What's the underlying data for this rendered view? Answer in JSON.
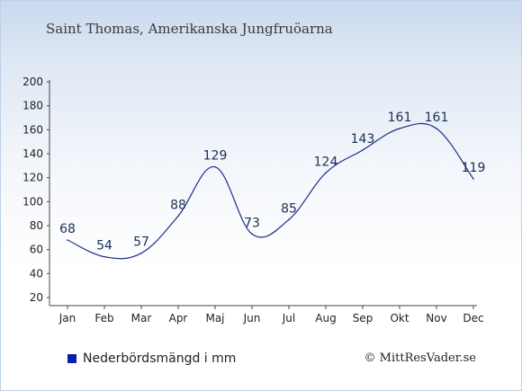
{
  "header": {
    "title": "Saint Thomas, Amerikanska Jungfruöarna"
  },
  "legend": {
    "label": "Nederbördsmängd i mm",
    "swatch_color": "#0a1fa8"
  },
  "credit": {
    "text": "© MittResVader.se"
  },
  "chart_data": {
    "type": "line",
    "categories": [
      "Jan",
      "Feb",
      "Mar",
      "Apr",
      "Maj",
      "Jun",
      "Jul",
      "Aug",
      "Sep",
      "Okt",
      "Nov",
      "Dec"
    ],
    "series": [
      {
        "name": "Nederbördsmängd i mm",
        "values": [
          68,
          54,
          57,
          88,
          129,
          73,
          85,
          124,
          143,
          161,
          161,
          119
        ],
        "color": "#1a2f8a"
      }
    ],
    "ylim": [
      20,
      200
    ],
    "yticks": [
      20,
      40,
      60,
      80,
      100,
      120,
      140,
      160,
      180,
      200
    ],
    "grid": false,
    "data_labels": true
  }
}
